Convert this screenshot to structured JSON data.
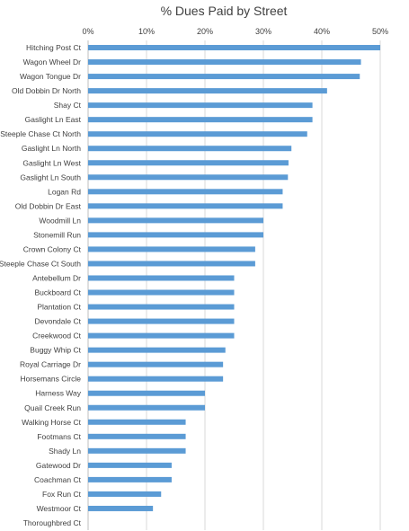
{
  "chart_data": {
    "type": "bar",
    "orientation": "horizontal",
    "title": "% Dues Paid by Street",
    "xlabel": "",
    "ylabel": "",
    "xlim": [
      0,
      50
    ],
    "x_ticks": [
      "0%",
      "10%",
      "20%",
      "30%",
      "40%",
      "50%"
    ],
    "x_axis_position": "top",
    "grid": true,
    "bar_color": "#5b9bd5",
    "categories": [
      "Hitching Post Ct",
      "Wagon Wheel Dr",
      "Wagon Tongue Dr",
      "Old Dobbin Dr North",
      "Shay Ct",
      "Gaslight Ln East",
      "Steeple Chase Ct North",
      "Gaslight Ln North",
      "Gaslight Ln West",
      "Gaslight Ln South",
      "Logan Rd",
      "Old Dobbin Dr East",
      "Woodmill Ln",
      "Stonemill Run",
      "Crown Colony Ct",
      "Steeple Chase Ct South",
      "Antebellum Dr",
      "Buckboard Ct",
      "Plantation Ct",
      "Devondale Ct",
      "Creekwood Ct",
      "Buggy Whip Ct",
      "Royal Carriage Dr",
      "Horsemans Circle",
      "Harness Way",
      "Quail Creek Run",
      "Walking Horse Ct",
      "Footmans Ct",
      "Shady Ln",
      "Gatewood Dr",
      "Coachman Ct",
      "Fox Run Ct",
      "Westmoor Ct",
      "Thoroughbred Ct"
    ],
    "values": [
      50.0,
      46.7,
      46.5,
      40.9,
      38.4,
      38.4,
      37.5,
      34.8,
      34.3,
      34.2,
      33.3,
      33.3,
      30.0,
      30.0,
      28.6,
      28.6,
      25.0,
      25.0,
      25.0,
      25.0,
      25.0,
      23.5,
      23.1,
      23.1,
      20.0,
      20.0,
      16.7,
      16.7,
      16.7,
      14.3,
      14.3,
      12.5,
      11.1,
      0.0
    ]
  }
}
